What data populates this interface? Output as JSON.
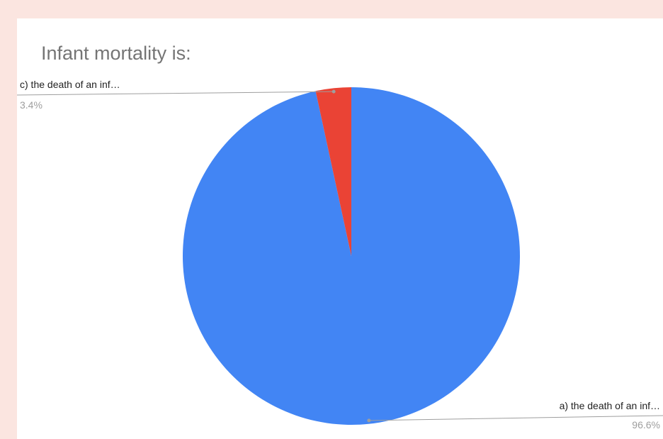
{
  "chart_data": {
    "type": "pie",
    "title": "Infant mortality is:",
    "slices": [
      {
        "label": "a) the death of an inf…",
        "value": 96.6,
        "value_label": "96.6%",
        "color": "#4285f4"
      },
      {
        "label": "c) the death of an inf…",
        "value": 3.4,
        "value_label": "3.4%",
        "color": "#ea4335"
      }
    ],
    "start_angle": "12 o'clock",
    "direction": "clockwise",
    "label_style": "leader lines, labels outside slices"
  }
}
